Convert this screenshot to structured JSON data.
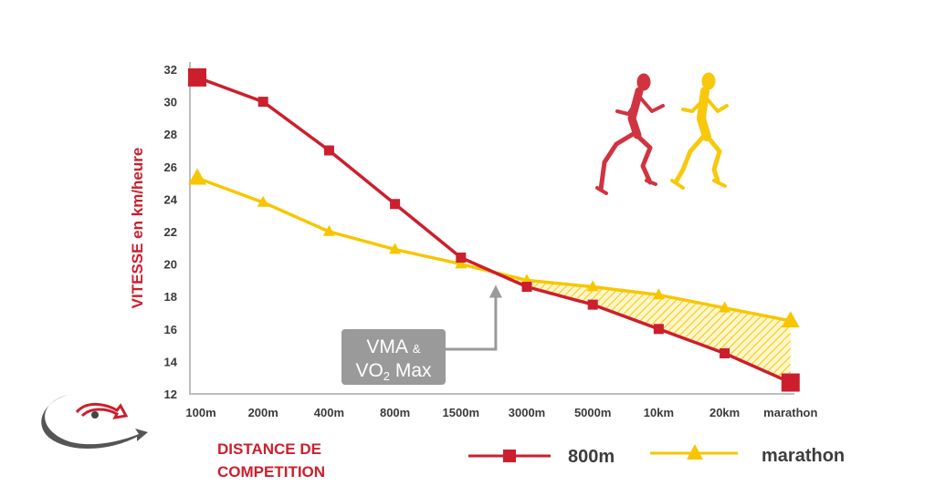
{
  "chart_data": {
    "type": "line",
    "ylabel": "VITESSE en km/heure",
    "xlabel_line1": "DISTANCE DE",
    "xlabel_line2": "COMPETITION",
    "categories": [
      "100m",
      "200m",
      "400m",
      "800m",
      "1500m",
      "3000m",
      "5000m",
      "10km",
      "20km",
      "marathon"
    ],
    "yticks": [
      12,
      14,
      16,
      18,
      20,
      22,
      24,
      26,
      28,
      30,
      32
    ],
    "ylim": [
      12,
      32
    ],
    "grid": false,
    "legend_position": "bottom-right",
    "series": [
      {
        "name": "800m",
        "color": "#cc1f2d",
        "marker": "square",
        "values": [
          31.5,
          30.0,
          27.0,
          23.7,
          20.4,
          18.6,
          17.5,
          16.0,
          14.5,
          12.7
        ]
      },
      {
        "name": "marathon",
        "color": "#f7c600",
        "marker": "triangle",
        "values": [
          25.3,
          23.8,
          22.0,
          20.9,
          20.0,
          19.0,
          18.6,
          18.1,
          17.3,
          16.5
        ]
      }
    ],
    "annotation": {
      "line1_main": "VMA",
      "line1_amp": "&",
      "line2_pre": "VO",
      "line2_sub": "2",
      "line2_post": " Max",
      "points_to_category": "1500m",
      "box_color": "#9a9a9a"
    },
    "icons": [
      "running-man-red-icon",
      "running-man-yellow-icon",
      "logo-arrows-icon"
    ]
  }
}
